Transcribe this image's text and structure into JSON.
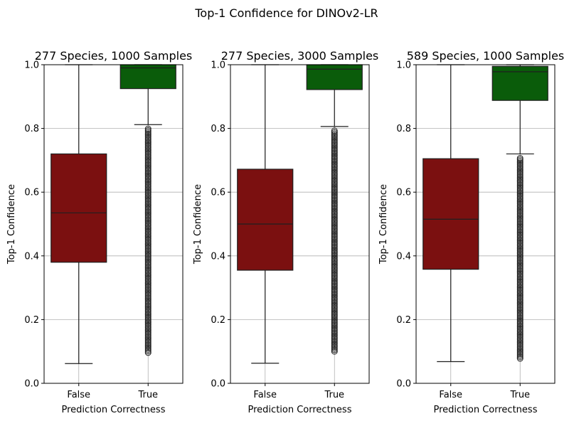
{
  "chart_data": {
    "type": "box",
    "title": "Top-1 Confidence for DINOv2-LR",
    "panels": [
      {
        "title": "277 Species, 1000 Samples",
        "xlabel": "Prediction Correctness",
        "ylabel": "Top-1 Confidence",
        "ylim": [
          0,
          1
        ],
        "yticks": [
          "0.0",
          "0.2",
          "0.4",
          "0.6",
          "0.8",
          "1.0"
        ],
        "grid": true,
        "categories": [
          "False",
          "True"
        ],
        "boxes": [
          {
            "category": "False",
            "color": "#7b1010",
            "q1": 0.38,
            "median": 0.535,
            "q3": 0.72,
            "whisker_low": 0.062,
            "whisker_high": 1.0,
            "flier_min": null
          },
          {
            "category": "True",
            "color": "#0a5c0a",
            "q1": 0.925,
            "median": 0.99,
            "q3": 1.0,
            "whisker_low": 0.812,
            "whisker_high": 1.0,
            "flier_min": 0.095
          }
        ]
      },
      {
        "title": "277 Species, 3000 Samples",
        "xlabel": "Prediction Correctness",
        "ylabel": "Top-1 Confidence",
        "ylim": [
          0,
          1
        ],
        "yticks": [
          "0.0",
          "0.2",
          "0.4",
          "0.6",
          "0.8",
          "1.0"
        ],
        "grid": true,
        "categories": [
          "False",
          "True"
        ],
        "boxes": [
          {
            "category": "False",
            "color": "#7b1010",
            "q1": 0.355,
            "median": 0.5,
            "q3": 0.672,
            "whisker_low": 0.063,
            "whisker_high": 1.0,
            "flier_min": null
          },
          {
            "category": "True",
            "color": "#0a5c0a",
            "q1": 0.922,
            "median": 0.986,
            "q3": 1.0,
            "whisker_low": 0.806,
            "whisker_high": 1.0,
            "flier_min": 0.1
          }
        ]
      },
      {
        "title": "589 Species, 1000 Samples",
        "xlabel": "Prediction Correctness",
        "ylabel": "Top-1 Confidence",
        "ylim": [
          0,
          1
        ],
        "yticks": [
          "0.0",
          "0.2",
          "0.4",
          "0.6",
          "0.8",
          "1.0"
        ],
        "grid": true,
        "categories": [
          "False",
          "True"
        ],
        "boxes": [
          {
            "category": "False",
            "color": "#7b1010",
            "q1": 0.358,
            "median": 0.515,
            "q3": 0.705,
            "whisker_low": 0.068,
            "whisker_high": 1.0,
            "flier_min": null
          },
          {
            "category": "True",
            "color": "#0a5c0a",
            "q1": 0.888,
            "median": 0.978,
            "q3": 0.995,
            "whisker_low": 0.72,
            "whisker_high": 1.0,
            "flier_min": 0.078
          }
        ]
      }
    ]
  }
}
